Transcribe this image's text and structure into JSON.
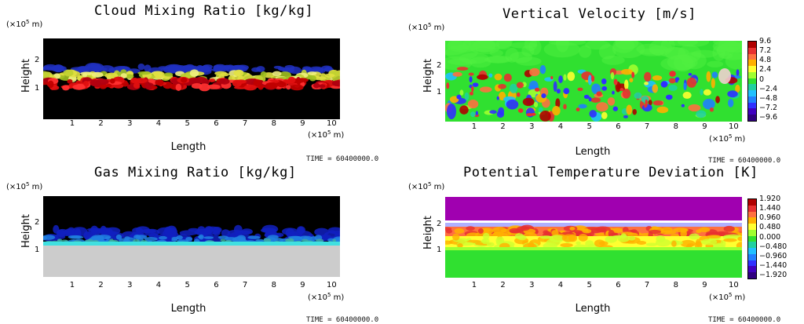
{
  "time_label": "TIME = 60400000.0",
  "chart_data": [
    {
      "type": "heatmap",
      "title": "Cloud Mixing Ratio [kg/kg]",
      "xlabel": "Length",
      "ylabel": "Height",
      "x_unit": "(×10⁵ m)",
      "y_unit": "(×10⁵ m)",
      "x_ticks": [
        "1",
        "2",
        "3",
        "4",
        "5",
        "6",
        "7",
        "8",
        "9",
        "10"
      ],
      "y_ticks": [
        "1",
        "2"
      ],
      "xlim": [
        0,
        10.3
      ],
      "ylim": [
        0,
        2.8
      ],
      "time": "TIME = 60400000.0",
      "colorbar": null
    },
    {
      "type": "heatmap",
      "title": "Vertical Velocity [m/s]",
      "xlabel": "Length",
      "ylabel": "Height",
      "x_unit": "(×10⁵ m)",
      "y_unit": "(×10⁵ m)",
      "x_ticks": [
        "1",
        "2",
        "3",
        "4",
        "5",
        "6",
        "7",
        "8",
        "9",
        "10"
      ],
      "y_ticks": [
        "1",
        "2"
      ],
      "xlim": [
        0,
        10.3
      ],
      "ylim": [
        0,
        2.8
      ],
      "time": "TIME = 60400000.0",
      "colorbar": {
        "labels": [
          "9.6",
          "7.2",
          "4.8",
          "2.4",
          "0",
          "−2.4",
          "−4.8",
          "−7.2",
          "−9.6"
        ],
        "colors": [
          "#b00000",
          "#e83030",
          "#ff7040",
          "#ffb000",
          "#ffff30",
          "#a0ff30",
          "#30e030",
          "#20d0a0",
          "#20c0ff",
          "#2080ff",
          "#3030ff",
          "#4000c0",
          "#300080"
        ]
      }
    },
    {
      "type": "heatmap",
      "title": "Gas Mixing Ratio [kg/kg]",
      "xlabel": "Length",
      "ylabel": "Height",
      "x_unit": "(×10⁵ m)",
      "y_unit": "(×10⁵ m)",
      "x_ticks": [
        "1",
        "2",
        "3",
        "4",
        "5",
        "6",
        "7",
        "8",
        "9",
        "10"
      ],
      "y_ticks": [
        "1",
        "2"
      ],
      "xlim": [
        0,
        10.3
      ],
      "ylim": [
        0,
        2.8
      ],
      "time": "TIME = 60400000.0",
      "colorbar": null
    },
    {
      "type": "heatmap",
      "title": "Potential Temperature Deviation [K]",
      "xlabel": "Length",
      "ylabel": "Height",
      "x_unit": "(×10⁵ m)",
      "y_unit": "(×10⁵ m)",
      "x_ticks": [
        "1",
        "2",
        "3",
        "4",
        "5",
        "6",
        "7",
        "8",
        "9",
        "10"
      ],
      "y_ticks": [
        "1",
        "2"
      ],
      "xlim": [
        0,
        10.3
      ],
      "ylim": [
        0,
        2.8
      ],
      "time": "TIME = 60400000.0",
      "colorbar": {
        "labels": [
          "1.920",
          "1.440",
          "0.960",
          "0.480",
          "0.000",
          "−0.480",
          "−0.960",
          "−1.440",
          "−1.920"
        ],
        "colors": [
          "#b00000",
          "#e83030",
          "#ff7040",
          "#ffb000",
          "#ffff30",
          "#a0ff30",
          "#30e030",
          "#20d0a0",
          "#20c0ff",
          "#2080ff",
          "#3030ff",
          "#4000c0",
          "#300080"
        ]
      }
    }
  ]
}
